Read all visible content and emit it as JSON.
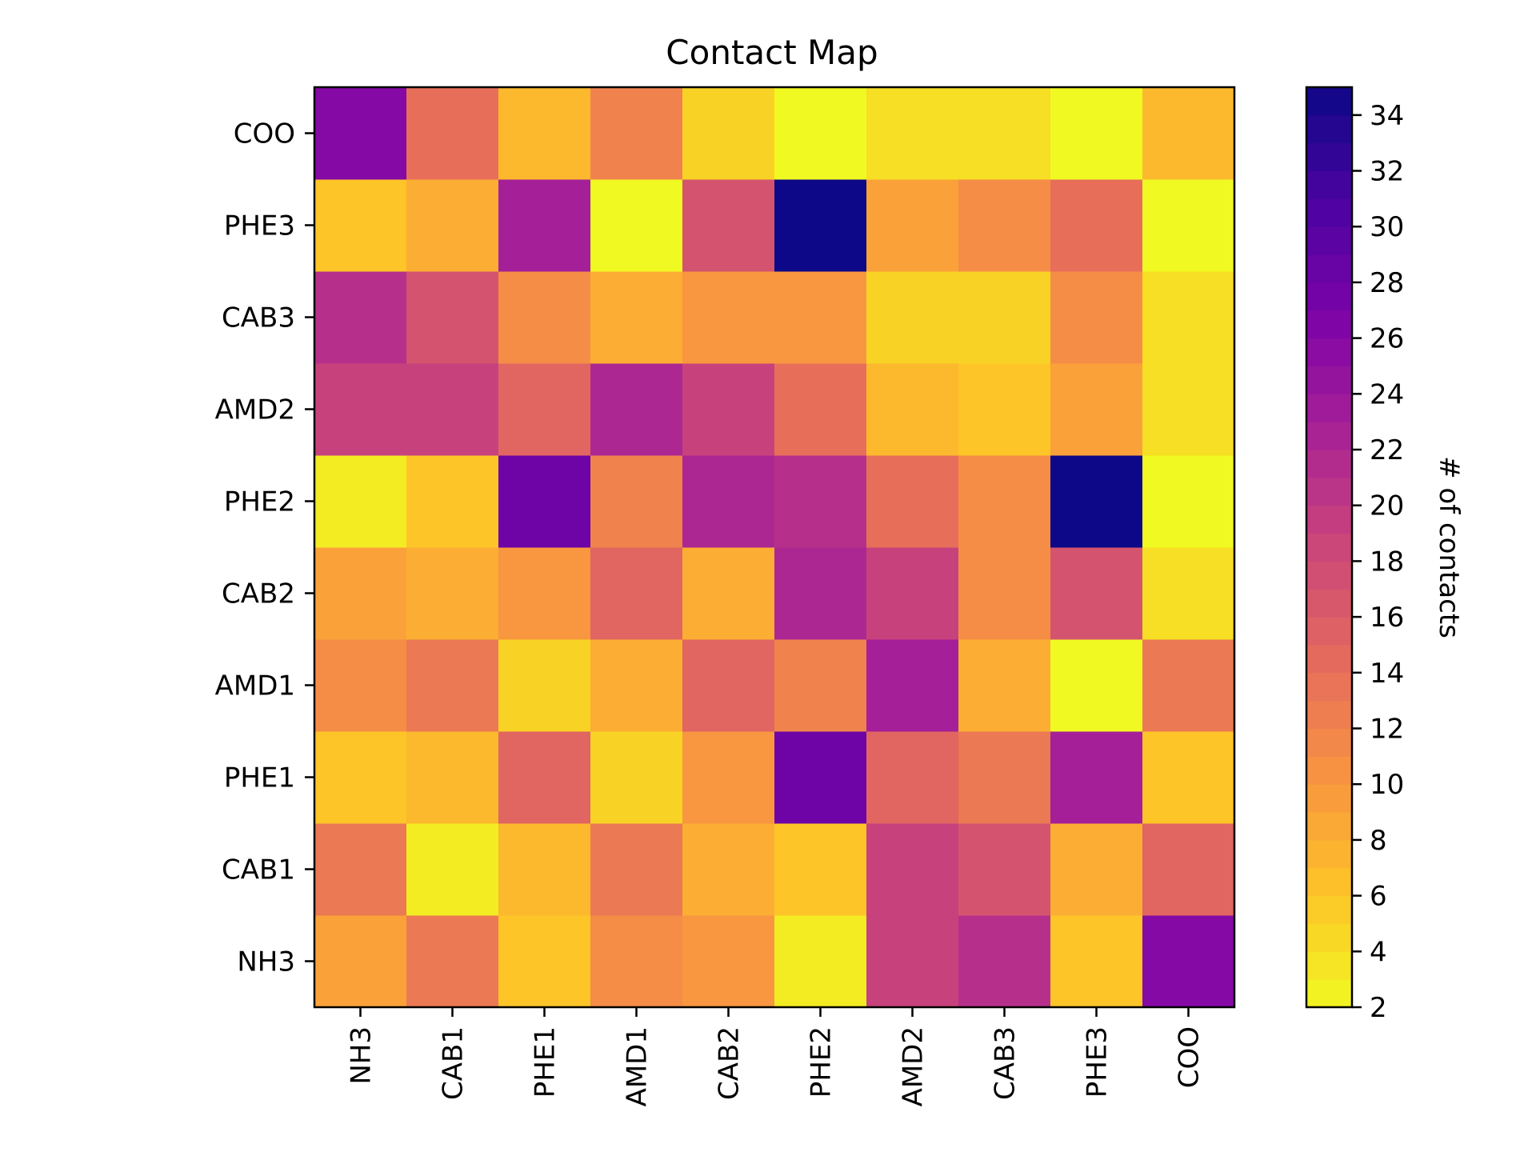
{
  "chart_data": {
    "type": "heatmap",
    "title": "Contact Map",
    "colorbar_label": "# of contacts",
    "colormap": "plasma_r",
    "x_categories": [
      "NH3",
      "CAB1",
      "PHE1",
      "AMD1",
      "CAB2",
      "PHE2",
      "AMD2",
      "CAB3",
      "PHE3",
      "COO"
    ],
    "y_categories": [
      "NH3",
      "CAB1",
      "PHE1",
      "AMD1",
      "CAB2",
      "PHE2",
      "AMD2",
      "CAB3",
      "PHE3",
      "COO"
    ],
    "values": [
      [
        9,
        13,
        6,
        11,
        10,
        3,
        19,
        21,
        6,
        26
      ],
      [
        13,
        3,
        7,
        13,
        8,
        6,
        19,
        17,
        8,
        15
      ],
      [
        6,
        7,
        15,
        5,
        10,
        28,
        15,
        13,
        23,
        6
      ],
      [
        11,
        13,
        5,
        8,
        15,
        12,
        23,
        8,
        2,
        13
      ],
      [
        9,
        8,
        10,
        15,
        8,
        22,
        19,
        11,
        17,
        4
      ],
      [
        3,
        6,
        28,
        12,
        22,
        21,
        14,
        11,
        35,
        2
      ],
      [
        19,
        19,
        15,
        22,
        19,
        14,
        7,
        6,
        9,
        4
      ],
      [
        21,
        17,
        11,
        8,
        10,
        10,
        5,
        5,
        11,
        4
      ],
      [
        6,
        8,
        23,
        2,
        17,
        35,
        9,
        11,
        14,
        2
      ],
      [
        26,
        14,
        7,
        12,
        5,
        2,
        4,
        4,
        2,
        7
      ]
    ],
    "colorbar_range": [
      2,
      35
    ],
    "colorbar_ticks": [
      "2",
      "4",
      "6",
      "8",
      "10",
      "12",
      "14",
      "16",
      "18",
      "20",
      "22",
      "24",
      "26",
      "28",
      "30",
      "32",
      "34"
    ]
  }
}
